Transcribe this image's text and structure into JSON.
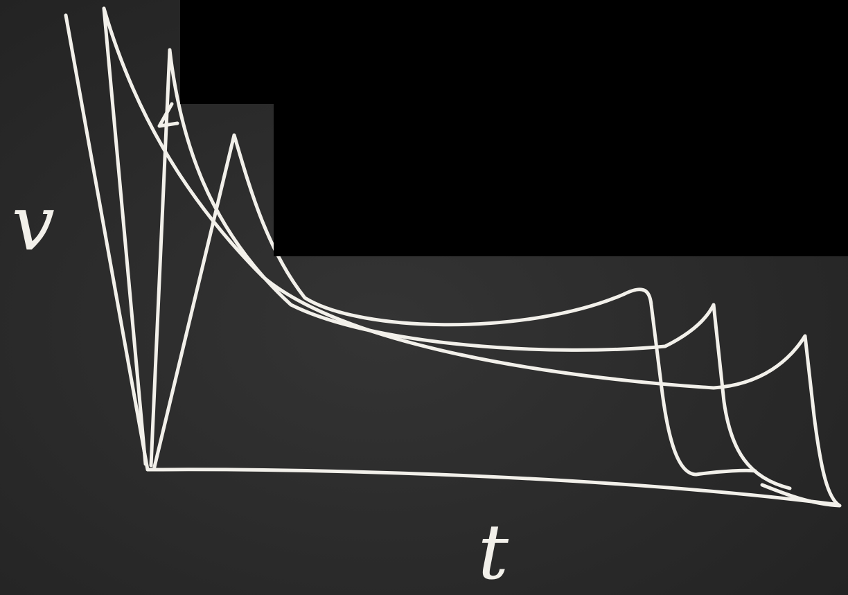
{
  "axes": {
    "y_label": "v",
    "x_label": "t"
  }
}
